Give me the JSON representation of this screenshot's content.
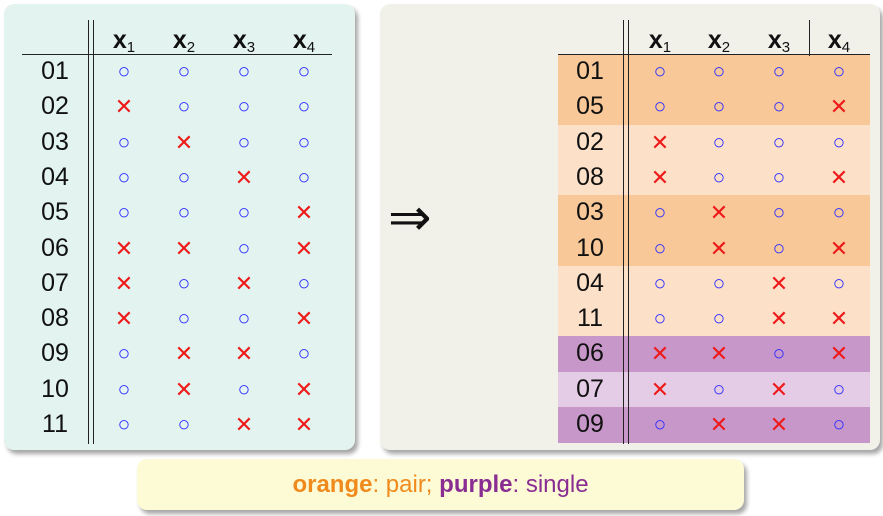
{
  "columns": [
    {
      "main": "x",
      "sub": "1"
    },
    {
      "main": "x",
      "sub": "2"
    },
    {
      "main": "x",
      "sub": "3"
    },
    {
      "main": "x",
      "sub": "4"
    }
  ],
  "symbols": {
    "o": "○",
    "x": "✕"
  },
  "colors": {
    "panel_left": "#e3f3ef",
    "panel_right": "#f1f0e9",
    "o_symbol": "#2b2bff",
    "x_symbol": "#ee1a1a",
    "orange_dark": "#f8c898",
    "orange_light": "#fde0c8",
    "purple_dark": "#c897ca",
    "purple_light": "#e4cce6",
    "legend_bg": "#fdfbd6",
    "legend_orange": "#f08a1c",
    "legend_purple": "#8a2d92"
  },
  "left_table": {
    "rows": [
      {
        "id": "01",
        "vals": [
          "o",
          "o",
          "o",
          "o"
        ]
      },
      {
        "id": "02",
        "vals": [
          "x",
          "o",
          "o",
          "o"
        ]
      },
      {
        "id": "03",
        "vals": [
          "o",
          "x",
          "o",
          "o"
        ]
      },
      {
        "id": "04",
        "vals": [
          "o",
          "o",
          "x",
          "o"
        ]
      },
      {
        "id": "05",
        "vals": [
          "o",
          "o",
          "o",
          "x"
        ]
      },
      {
        "id": "06",
        "vals": [
          "x",
          "x",
          "o",
          "x"
        ]
      },
      {
        "id": "07",
        "vals": [
          "x",
          "o",
          "x",
          "o"
        ]
      },
      {
        "id": "08",
        "vals": [
          "x",
          "o",
          "o",
          "x"
        ]
      },
      {
        "id": "09",
        "vals": [
          "o",
          "x",
          "x",
          "o"
        ]
      },
      {
        "id": "10",
        "vals": [
          "o",
          "x",
          "o",
          "x"
        ]
      },
      {
        "id": "11",
        "vals": [
          "o",
          "o",
          "x",
          "x"
        ]
      }
    ]
  },
  "arrow": "⇒",
  "right_table": {
    "rows": [
      {
        "id": "01",
        "vals": [
          "o",
          "o",
          "o",
          "o"
        ],
        "band": "orange_dark"
      },
      {
        "id": "05",
        "vals": [
          "o",
          "o",
          "o",
          "x"
        ],
        "band": "orange_dark"
      },
      {
        "id": "02",
        "vals": [
          "x",
          "o",
          "o",
          "o"
        ],
        "band": "orange_light"
      },
      {
        "id": "08",
        "vals": [
          "x",
          "o",
          "o",
          "x"
        ],
        "band": "orange_light"
      },
      {
        "id": "03",
        "vals": [
          "o",
          "x",
          "o",
          "o"
        ],
        "band": "orange_dark"
      },
      {
        "id": "10",
        "vals": [
          "o",
          "x",
          "o",
          "x"
        ],
        "band": "orange_dark"
      },
      {
        "id": "04",
        "vals": [
          "o",
          "o",
          "x",
          "o"
        ],
        "band": "orange_light"
      },
      {
        "id": "11",
        "vals": [
          "o",
          "o",
          "x",
          "x"
        ],
        "band": "orange_light"
      },
      {
        "id": "06",
        "vals": [
          "x",
          "x",
          "o",
          "x"
        ],
        "band": "purple_dark"
      },
      {
        "id": "07",
        "vals": [
          "x",
          "o",
          "x",
          "o"
        ],
        "band": "purple_light"
      },
      {
        "id": "09",
        "vals": [
          "o",
          "x",
          "x",
          "o"
        ],
        "band": "purple_dark"
      }
    ]
  },
  "legend": {
    "orange_word": "orange",
    "orange_desc": ": pair; ",
    "purple_word": "purple",
    "purple_desc": ": single"
  }
}
